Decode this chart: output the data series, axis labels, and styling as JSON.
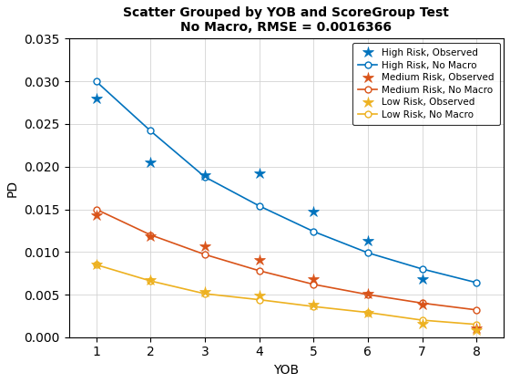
{
  "title_line1": "Scatter Grouped by YOB and ScoreGroup Test",
  "title_line2": "No Macro, RMSE = 0.0016366",
  "xlabel": "YOB",
  "ylabel": "PD",
  "xob": [
    1,
    2,
    3,
    4,
    5,
    6,
    7,
    8
  ],
  "high_observed": [
    0.028,
    0.0205,
    0.019,
    0.0192,
    0.0147,
    0.0113,
    0.0068,
    null
  ],
  "high_no_macro": [
    0.03,
    0.0242,
    0.0188,
    0.0154,
    0.0124,
    0.0099,
    0.008,
    0.0064
  ],
  "medium_observed": [
    0.0143,
    0.0118,
    0.0107,
    0.0091,
    0.0068,
    0.0051,
    0.0038,
    0.001
  ],
  "medium_no_macro": [
    0.015,
    0.012,
    0.0097,
    0.0078,
    0.0062,
    0.005,
    0.004,
    0.0032
  ],
  "low_observed": [
    0.0085,
    0.0067,
    0.0053,
    0.0049,
    0.0038,
    0.0029,
    0.0016,
    0.0008
  ],
  "low_no_macro": [
    0.0085,
    0.0066,
    0.0051,
    0.0044,
    0.0036,
    0.0029,
    0.002,
    0.0015
  ],
  "high_color": "#0072BD",
  "medium_color": "#D95319",
  "low_color": "#EDB120",
  "bg_color": "#FFFFFF",
  "axes_bg": "#FFFFFF",
  "ylim": [
    0,
    0.035
  ],
  "xlim": [
    0.5,
    8.5
  ],
  "yticks": [
    0,
    0.005,
    0.01,
    0.015,
    0.02,
    0.025,
    0.03,
    0.035
  ],
  "xticks": [
    1,
    2,
    3,
    4,
    5,
    6,
    7,
    8
  ]
}
